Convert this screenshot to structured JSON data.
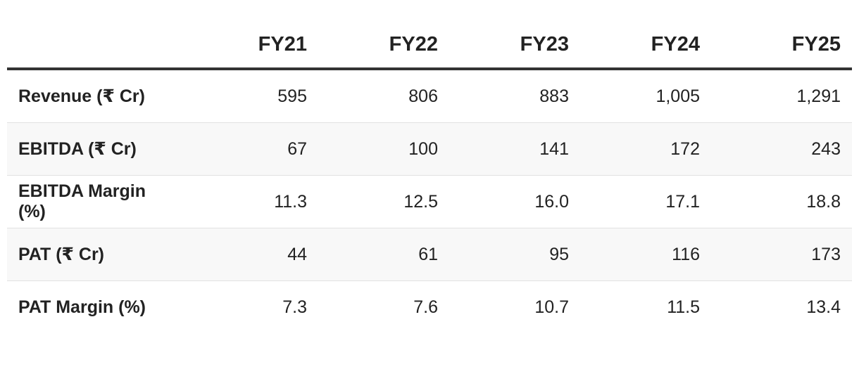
{
  "table": {
    "columns": [
      "",
      "FY21",
      "FY22",
      "FY23",
      "FY24",
      "FY25"
    ],
    "rows": [
      {
        "label": "Revenue (₹ Cr)",
        "values": [
          "595",
          "806",
          "883",
          "1,005",
          "1,291"
        ]
      },
      {
        "label": "EBITDA (₹ Cr)",
        "values": [
          "67",
          "100",
          "141",
          "172",
          "243"
        ]
      },
      {
        "label": "EBITDA Margin (%)",
        "values": [
          "11.3",
          "12.5",
          "16.0",
          "17.1",
          "18.8"
        ]
      },
      {
        "label": "PAT (₹ Cr)",
        "values": [
          "44",
          "61",
          "95",
          "116",
          "173"
        ]
      },
      {
        "label": "PAT Margin (%)",
        "values": [
          "7.3",
          "7.6",
          "10.7",
          "11.5",
          "13.4"
        ]
      }
    ]
  }
}
